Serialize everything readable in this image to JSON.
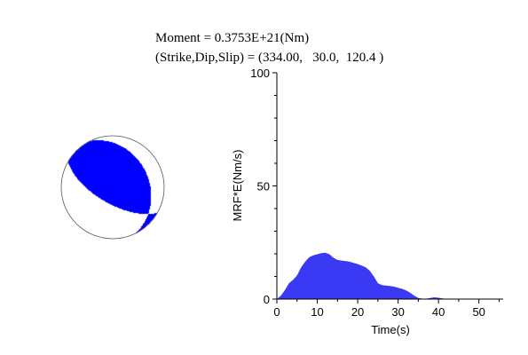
{
  "header": {
    "moment_line": "Moment = 0.3753E+21(Nm)",
    "angles_line": "(Strike,Dip,Slip) = (334.00,   30.0,  120.4 )"
  },
  "colors": {
    "fill": "#0000ff",
    "area_fill": "#3a3af5",
    "outline": "#555555",
    "axis": "#000000"
  },
  "beachball": {
    "strike_deg": 334.0,
    "dip_deg": 30.0,
    "slip_deg": 120.4,
    "shaded": "compressional quadrants"
  },
  "chart_data": {
    "type": "area",
    "title": "",
    "xlabel": "Time(s)",
    "ylabel": "MRF*E(Nm/s)",
    "xlim": [
      0,
      56
    ],
    "ylim": [
      0,
      100
    ],
    "xticks": [
      0,
      10,
      20,
      30,
      40,
      50
    ],
    "yticks": [
      0,
      50,
      100
    ],
    "x": [
      0,
      1,
      2,
      3,
      4,
      5,
      6,
      7,
      8,
      9,
      10,
      11,
      12,
      13,
      14,
      15,
      16,
      17,
      18,
      19,
      20,
      21,
      22,
      23,
      24,
      25,
      26,
      27,
      28,
      29,
      30,
      31,
      32,
      33,
      34,
      35,
      36,
      37,
      38,
      39,
      40,
      41,
      42,
      43,
      44,
      45,
      50,
      55,
      56
    ],
    "values": [
      0,
      1.5,
      4,
      7,
      8.5,
      10.5,
      14,
      16.5,
      18.5,
      19.3,
      19.8,
      20.3,
      20.5,
      19.8,
      18.3,
      17.3,
      17.0,
      16.8,
      16.5,
      16.0,
      15.5,
      14.8,
      14.0,
      12.5,
      10.0,
      7.0,
      6.2,
      6.0,
      5.8,
      5.5,
      5.0,
      4.5,
      3.8,
      2.8,
      1.5,
      0.5,
      0.2,
      0.2,
      0.5,
      0.8,
      0.6,
      0.3,
      0.1,
      0.1,
      0,
      0,
      0,
      0,
      0
    ]
  }
}
